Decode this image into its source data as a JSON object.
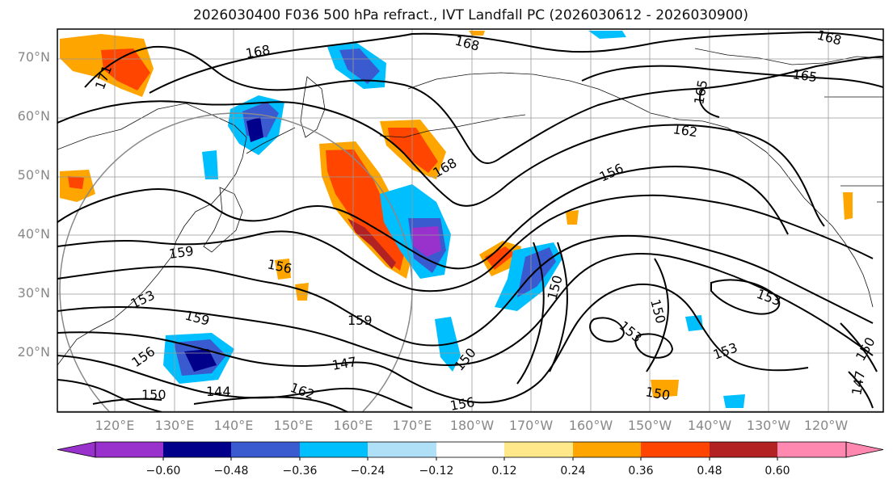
{
  "title": "2026030400 F036 500 hPa refract., IVT Landfall PC (2026030612 - 2026030900)",
  "lat_labels": [
    "70°N",
    "60°N",
    "50°N",
    "40°N",
    "30°N",
    "20°N"
  ],
  "lon_labels": [
    "120°E",
    "130°E",
    "140°E",
    "150°E",
    "160°E",
    "170°E",
    "180°W",
    "170°W",
    "160°W",
    "150°W",
    "140°W",
    "130°W",
    "120°W"
  ],
  "contour_labels": [
    "168",
    "168",
    "171",
    "168",
    "165",
    "162",
    "165",
    "168",
    "156",
    "159",
    "156",
    "153",
    "159",
    "159",
    "156",
    "147",
    "153",
    "150",
    "150",
    "153",
    "153",
    "144",
    "150",
    "162",
    "156",
    "150",
    "147",
    "150",
    "150"
  ],
  "colorbar": {
    "ticks": [
      "−0.60",
      "−0.48",
      "−0.36",
      "−0.24",
      "−0.12",
      "0.12",
      "0.24",
      "0.36",
      "0.48",
      "0.60"
    ],
    "colors": [
      "#9932cc",
      "#00008b",
      "#3a5bd0",
      "#00bfff",
      "#b0e0f8",
      "#ffffff",
      "#ffe88a",
      "#ffa500",
      "#ff4500",
      "#b22222",
      "#ff88b0"
    ]
  }
}
